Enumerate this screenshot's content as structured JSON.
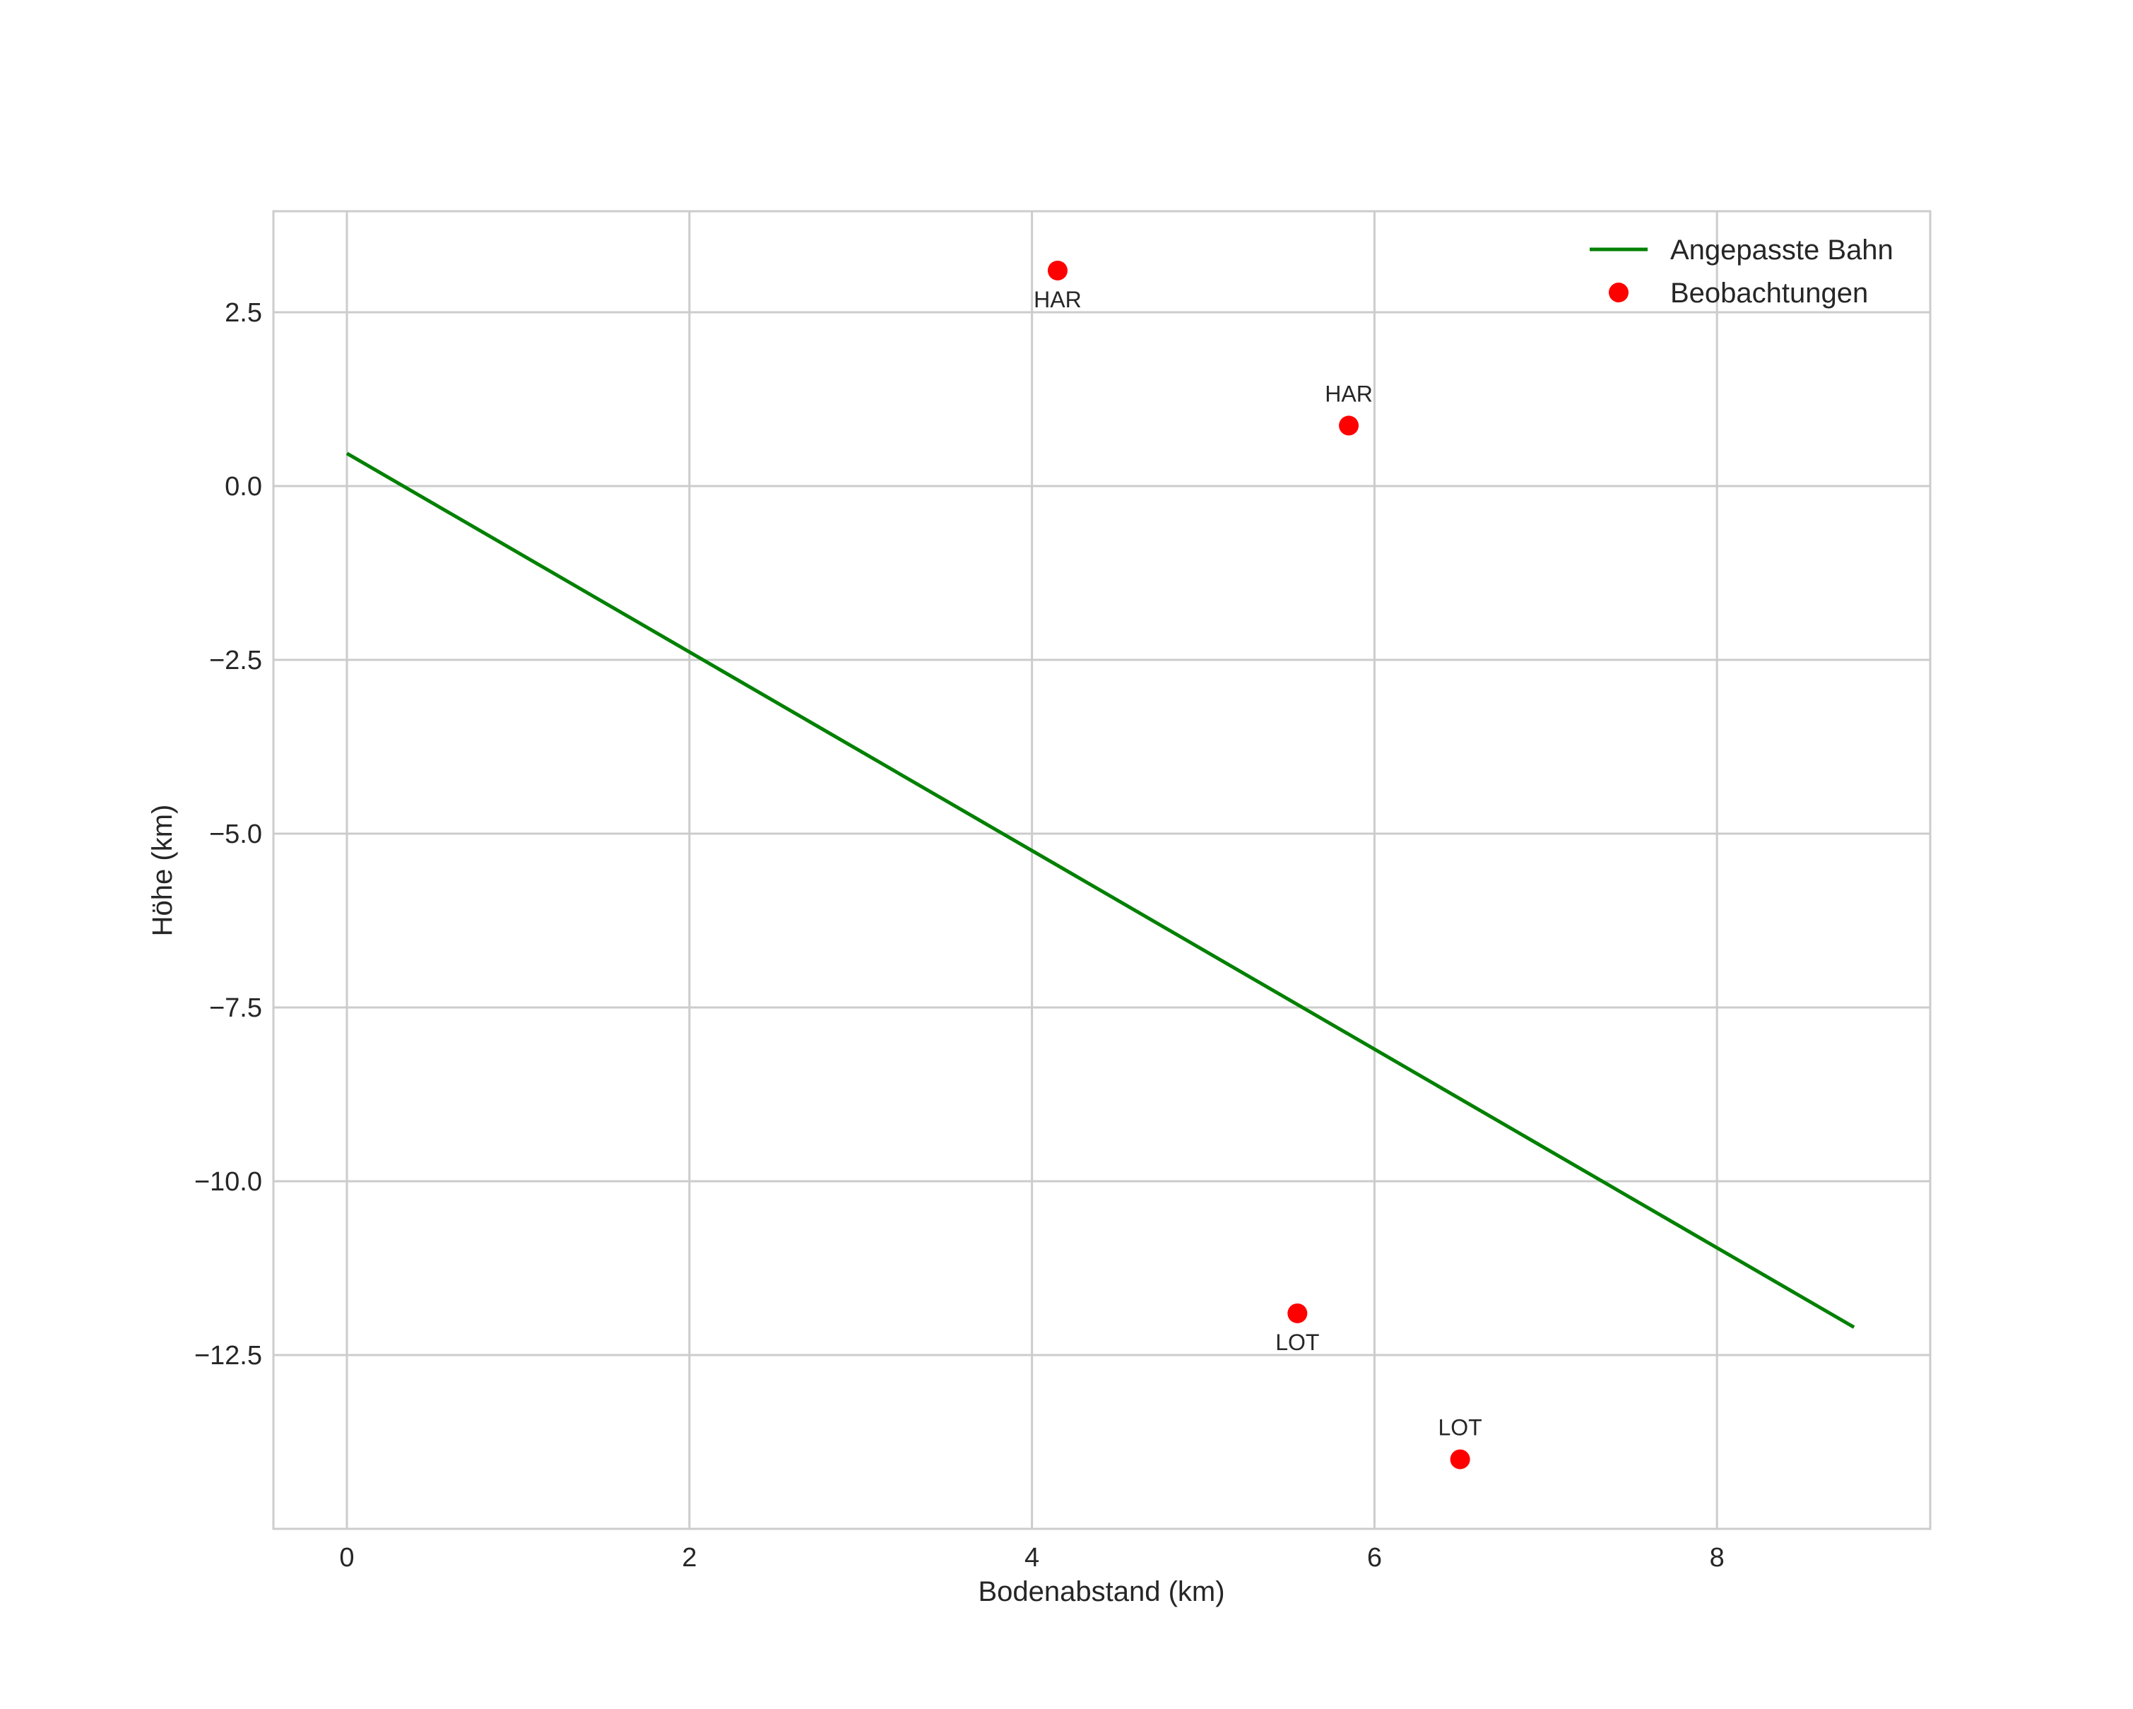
{
  "chart_data": {
    "type": "line",
    "title": "",
    "xlabel": "Bodenabstand (km)",
    "ylabel": "Höhe (km)",
    "xlim": [
      -0.45,
      9.25
    ],
    "ylim": [
      -14.8,
      4.0
    ],
    "grid": true,
    "legend_position": "upper right",
    "xticks": [
      0,
      2,
      4,
      6,
      8
    ],
    "xtick_labels": [
      "0",
      "2",
      "4",
      "6",
      "8"
    ],
    "yticks": [
      2.5,
      0.0,
      -2.5,
      -5.0,
      -7.5,
      -10.0,
      -12.5
    ],
    "ytick_labels": [
      "2.5",
      "0.0",
      "−2.5",
      "−5.0",
      "−7.5",
      "−10.0",
      "−12.5"
    ],
    "series": [
      {
        "name": "Angepasste Bahn",
        "type": "line",
        "color": "#008000",
        "x": [
          0.0,
          8.8
        ],
        "y": [
          0.47,
          -12.1
        ]
      },
      {
        "name": "Beobachtungen",
        "type": "scatter",
        "color": "#ff0000",
        "points": [
          {
            "x": 4.15,
            "y": 3.1,
            "label": "HAR",
            "label_pos": "below"
          },
          {
            "x": 5.85,
            "y": 0.87,
            "label": "HAR",
            "label_pos": "above"
          },
          {
            "x": 5.55,
            "y": -11.9,
            "label": "LOT",
            "label_pos": "below"
          },
          {
            "x": 6.5,
            "y": -14.0,
            "label": "LOT",
            "label_pos": "above"
          }
        ]
      }
    ]
  },
  "legend": {
    "items": [
      {
        "label": "Angepasste Bahn"
      },
      {
        "label": "Beobachtungen"
      }
    ]
  }
}
